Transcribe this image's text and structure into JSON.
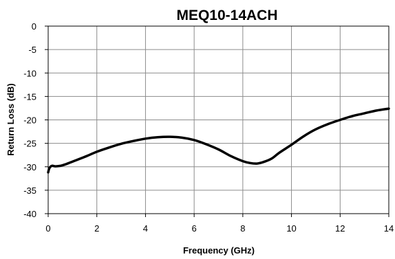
{
  "chart_data": {
    "type": "line",
    "title": "MEQ10-14ACH",
    "xlabel": "Frequency (GHz)",
    "ylabel": "Return Loss (dB)",
    "xlim": [
      0,
      14
    ],
    "ylim": [
      -40,
      0
    ],
    "xticks": [
      0,
      2,
      4,
      6,
      8,
      10,
      12,
      14
    ],
    "yticks": [
      0,
      -5,
      -10,
      -15,
      -20,
      -25,
      -30,
      -35,
      -40
    ],
    "grid": true,
    "legend": "none",
    "line_color": "#000000",
    "series": [
      {
        "x": [
          0.0,
          0.05,
          0.15,
          0.3,
          0.5,
          0.7,
          1.0,
          1.5,
          2.0,
          2.5,
          3.0,
          3.5,
          4.0,
          4.5,
          5.0,
          5.5,
          6.0,
          6.5,
          7.0,
          7.5,
          8.0,
          8.3,
          8.6,
          8.9,
          9.2,
          9.5,
          10.0,
          10.5,
          11.0,
          11.5,
          12.0,
          12.5,
          13.0,
          13.5,
          14.0
        ],
        "y": [
          -31.2,
          -30.3,
          -29.8,
          -29.9,
          -29.8,
          -29.5,
          -28.9,
          -27.9,
          -26.8,
          -25.9,
          -25.1,
          -24.5,
          -24.0,
          -23.7,
          -23.6,
          -23.8,
          -24.3,
          -25.2,
          -26.3,
          -27.7,
          -28.8,
          -29.2,
          -29.3,
          -28.9,
          -28.2,
          -27.0,
          -25.3,
          -23.5,
          -22.0,
          -20.9,
          -20.0,
          -19.2,
          -18.6,
          -18.0,
          -17.6
        ]
      }
    ]
  }
}
